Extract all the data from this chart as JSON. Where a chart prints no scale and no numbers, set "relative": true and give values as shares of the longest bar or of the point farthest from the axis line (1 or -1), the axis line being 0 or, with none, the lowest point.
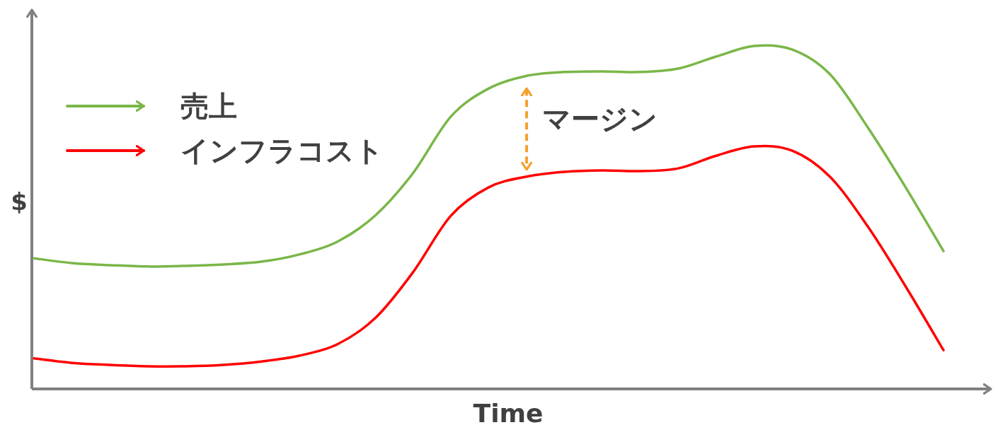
{
  "chart_data": {
    "type": "line",
    "relative": true,
    "xlabel": "Time",
    "ylabel": "$",
    "legend": "top left",
    "annotations": [
      "マージン"
    ],
    "categories": [
      null,
      null,
      null,
      null,
      null,
      null,
      null,
      null,
      null,
      null,
      null,
      null,
      null,
      null,
      null,
      null,
      null,
      null,
      null,
      null,
      null,
      null,
      null,
      null,
      null
    ],
    "series": [
      {
        "name": "売上",
        "color": "#7ab648",
        "values": [
          0.381,
          0.367,
          0.361,
          0.357,
          0.359,
          0.363,
          0.371,
          0.392,
          0.429,
          0.505,
          0.629,
          0.794,
          0.876,
          0.913,
          0.924,
          0.926,
          0.924,
          0.934,
          0.969,
          1,
          0.99,
          0.918,
          0.763,
          0.588,
          0.402
        ]
      },
      {
        "name": "インフラコスト",
        "color": "#ff0000",
        "values": [
          0.089,
          0.076,
          0.07,
          0.066,
          0.066,
          0.07,
          0.08,
          0.097,
          0.13,
          0.206,
          0.34,
          0.505,
          0.588,
          0.619,
          0.633,
          0.637,
          0.635,
          0.643,
          0.68,
          0.707,
          0.695,
          0.619,
          0.474,
          0.299,
          0.113
        ]
      }
    ]
  }
}
